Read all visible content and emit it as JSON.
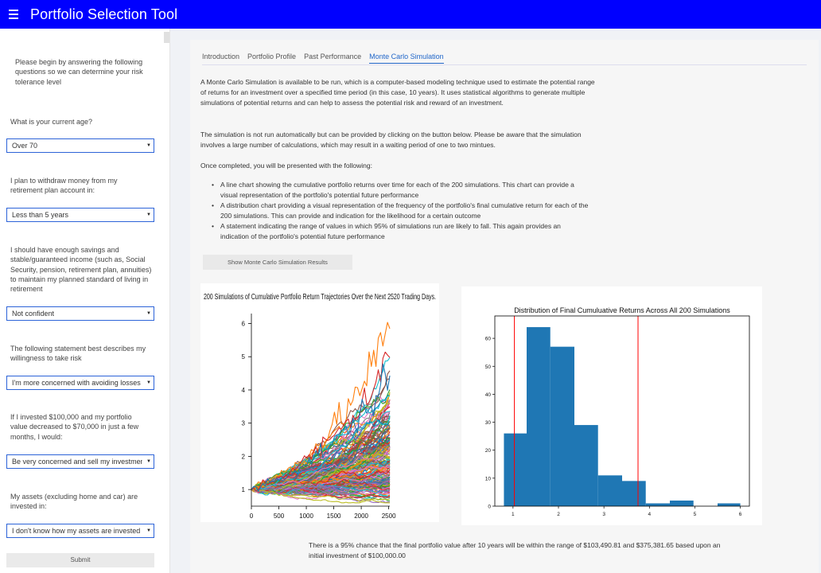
{
  "app": {
    "title": "Portfolio Selection Tool"
  },
  "sidebar": {
    "intro": "Please begin by answering the following questions so we can determine your risk tolerance level",
    "questions": [
      {
        "label": "What is your current age?",
        "value": "Over 70"
      },
      {
        "label": "I plan to withdraw money from my retirement plan account in:",
        "value": "Less than 5 years"
      },
      {
        "label": "I should have enough savings and stable/guaranteed income (such as, Social Security, pension, retirement plan, annuities) to maintain my planned standard of living in retirement",
        "value": "Not confident"
      },
      {
        "label": "The following statement best describes my willingness to take risk",
        "value": "I'm more concerned with avoiding losses th"
      },
      {
        "label": "If I invested $100,000 and my portfolio value decreased to $70,000 in just a few months, I would:",
        "value": "Be very concerned and sell my investmen"
      },
      {
        "label": "My assets (excluding home and car) are invested in:",
        "value": "I don't know how my assets are invested"
      }
    ],
    "submit_label": "Submit"
  },
  "tabs": [
    "Introduction",
    "Portfolio Profile",
    "Past Performance",
    "Monte Carlo Simulation"
  ],
  "active_tab": "Monte Carlo Simulation",
  "main": {
    "para1": "A Monte Carlo Simulation is available to be run, which is a computer-based modeling technique used to estimate the potential range of returns for an investment over a specified time period (in this case, 10 years). It uses statistical algorithms to generate multiple simulations of potential returns and can help to assess the potential risk and reward of an investment.",
    "para2": "The simulation is not run automatically but can be provided by clicking on the button below. Please be aware that the simulation involves a large number of calculations, which may result in a waiting period of one to two mintues.",
    "para3": "Once completed, you will be presented with the following:",
    "bullets": [
      "A line chart showing the cumulative portfolio returns over time for each of the 200 simulations. This chart can provide a visual representation of the portfolio's potential future performance",
      "A distribution chart providing a visual representation of the frequency of the portfolio's final cumulative return for each of the 200 simulations. This can provide and indication for the likelihood for a certain outcome",
      "A statement indicating the range of values in which 95% of simulations run are likely to fall. This again provides an indication of the portfolio's potential future performance"
    ],
    "button_label": "Show Monte Carlo Simulation Results",
    "result_text": "There is a 95% chance that the final portfolio value after 10 years will be within the range of $103,490.81 and $375,381.65 based upon an initial investment of $100,000.00"
  },
  "chart_data": [
    {
      "type": "line",
      "title": "200 Simulations of Cumulative Portfolio Return Trajectories Over the Next 2520 Trading Days.",
      "xlim": [
        0,
        2520
      ],
      "ylim": [
        0.5,
        6.3
      ],
      "xticks": [
        0,
        500,
        1000,
        1500,
        2000,
        2500
      ],
      "yticks": [
        1,
        2,
        3,
        4,
        5,
        6
      ],
      "series_count": 200,
      "grid": false
    },
    {
      "type": "bar",
      "title": "Distribution of Final Cumuluative Returns Across All 200 Simulations",
      "bin_edges": [
        0.8,
        1.3,
        1.82,
        2.35,
        2.87,
        3.4,
        3.92,
        4.45,
        4.97,
        5.5,
        6.0
      ],
      "values": [
        26,
        64,
        57,
        29,
        11,
        9,
        1,
        2,
        0,
        1
      ],
      "xlim": [
        0.6,
        6.2
      ],
      "ylim": [
        0,
        68
      ],
      "xticks": [
        1,
        2,
        3,
        4,
        5,
        6
      ],
      "yticks": [
        0,
        10,
        20,
        30,
        40,
        50,
        60
      ],
      "lines": [
        1.03,
        3.75
      ],
      "bar_color": "#1f77b4",
      "line_color": "#ff0000"
    }
  ]
}
